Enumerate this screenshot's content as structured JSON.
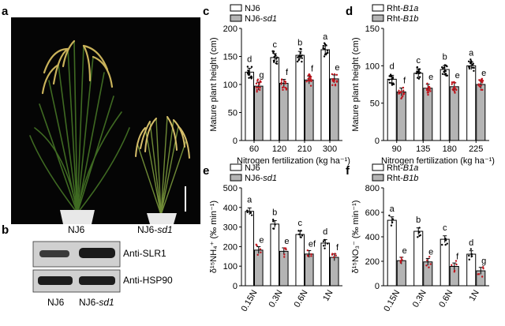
{
  "panels": {
    "a": {
      "label": "a",
      "plant_left": "NJ6",
      "plant_right_prefix": "NJ6-",
      "plant_right_italic": "sd1"
    },
    "b": {
      "label": "b",
      "band1": "Anti-SLR1",
      "band2": "Anti-HSP90",
      "lane1": "NJ6",
      "lane2_prefix": "NJ6-",
      "lane2_italic": "sd1"
    },
    "c": {
      "label": "c"
    },
    "d": {
      "label": "d"
    },
    "e": {
      "label": "e"
    },
    "f": {
      "label": "f"
    }
  },
  "colors": {
    "bar_open": "#ffffff",
    "bar_gray": "#b4b4b4",
    "dot_red": "#c0141c",
    "dot_black": "#000000"
  },
  "chart_data": [
    {
      "id": "c",
      "type": "bar",
      "legend": [
        {
          "prefix": "NJ6",
          "italic": ""
        },
        {
          "prefix": "NJ6-",
          "italic": "sd1"
        }
      ],
      "categories": [
        "60",
        "120",
        "210",
        "300"
      ],
      "xlabel": "Nitrogen fertilization (kg ha⁻¹)",
      "ylabel": "Mature plant height (cm)",
      "ylim": [
        0,
        200
      ],
      "yticks": [
        0,
        50,
        100,
        150,
        200
      ],
      "series": [
        {
          "values": [
            122,
            148,
            152,
            162
          ],
          "letters": [
            "d",
            "c",
            "b",
            "a"
          ]
        },
        {
          "values": [
            97,
            102,
            108,
            110
          ],
          "letters": [
            "g",
            "f",
            "f",
            "e"
          ]
        }
      ]
    },
    {
      "id": "d",
      "type": "bar",
      "legend": [
        {
          "prefix": "Rht-",
          "italic": "B1a"
        },
        {
          "prefix": "Rht-",
          "italic": "B1b"
        }
      ],
      "categories": [
        "90",
        "135",
        "180",
        "225"
      ],
      "xlabel": "Nitrogen fertilization (kg ha⁻¹)",
      "ylabel": "Mature plant height (cm)",
      "ylim": [
        0,
        150
      ],
      "yticks": [
        0,
        50,
        100,
        150
      ],
      "series": [
        {
          "values": [
            82,
            90,
            95,
            100
          ],
          "letters": [
            "d",
            "c",
            "b",
            "a"
          ]
        },
        {
          "values": [
            65,
            70,
            72,
            75
          ],
          "letters": [
            "f",
            "e",
            "e",
            "e"
          ]
        }
      ]
    },
    {
      "id": "e",
      "type": "bar",
      "legend": [
        {
          "prefix": "NJ6",
          "italic": ""
        },
        {
          "prefix": "NJ6-",
          "italic": "sd1"
        }
      ],
      "categories": [
        "0.15N",
        "0.3N",
        "0.6N",
        "1N"
      ],
      "ylabel": "δ¹⁵NH₄⁺ (‰ min⁻¹)",
      "ylim": [
        0,
        500
      ],
      "yticks": [
        0,
        100,
        200,
        300,
        400,
        500
      ],
      "series": [
        {
          "values": [
            380,
            315,
            262,
            218
          ],
          "letters": [
            "a",
            "b",
            "c",
            "d"
          ]
        },
        {
          "values": [
            182,
            176,
            162,
            145
          ],
          "letters": [
            "e",
            "e",
            "ef",
            "f"
          ]
        }
      ]
    },
    {
      "id": "f",
      "type": "bar",
      "legend": [
        {
          "prefix": "Rht-",
          "italic": "B1a"
        },
        {
          "prefix": "Rht-",
          "italic": "B1b"
        }
      ],
      "categories": [
        "0.15N",
        "0.3N",
        "0.6N",
        "1N"
      ],
      "ylabel": "δ¹⁵NO₃⁻ (‰ min⁻¹)",
      "ylim": [
        0,
        800
      ],
      "yticks": [
        0,
        200,
        400,
        600,
        800
      ],
      "series": [
        {
          "values": [
            535,
            445,
            380,
            258
          ],
          "letters": [
            "a",
            "b",
            "c",
            "d"
          ]
        },
        {
          "values": [
            205,
            195,
            158,
            122
          ],
          "letters": [
            "e",
            "e",
            "f",
            "g"
          ]
        }
      ]
    }
  ]
}
